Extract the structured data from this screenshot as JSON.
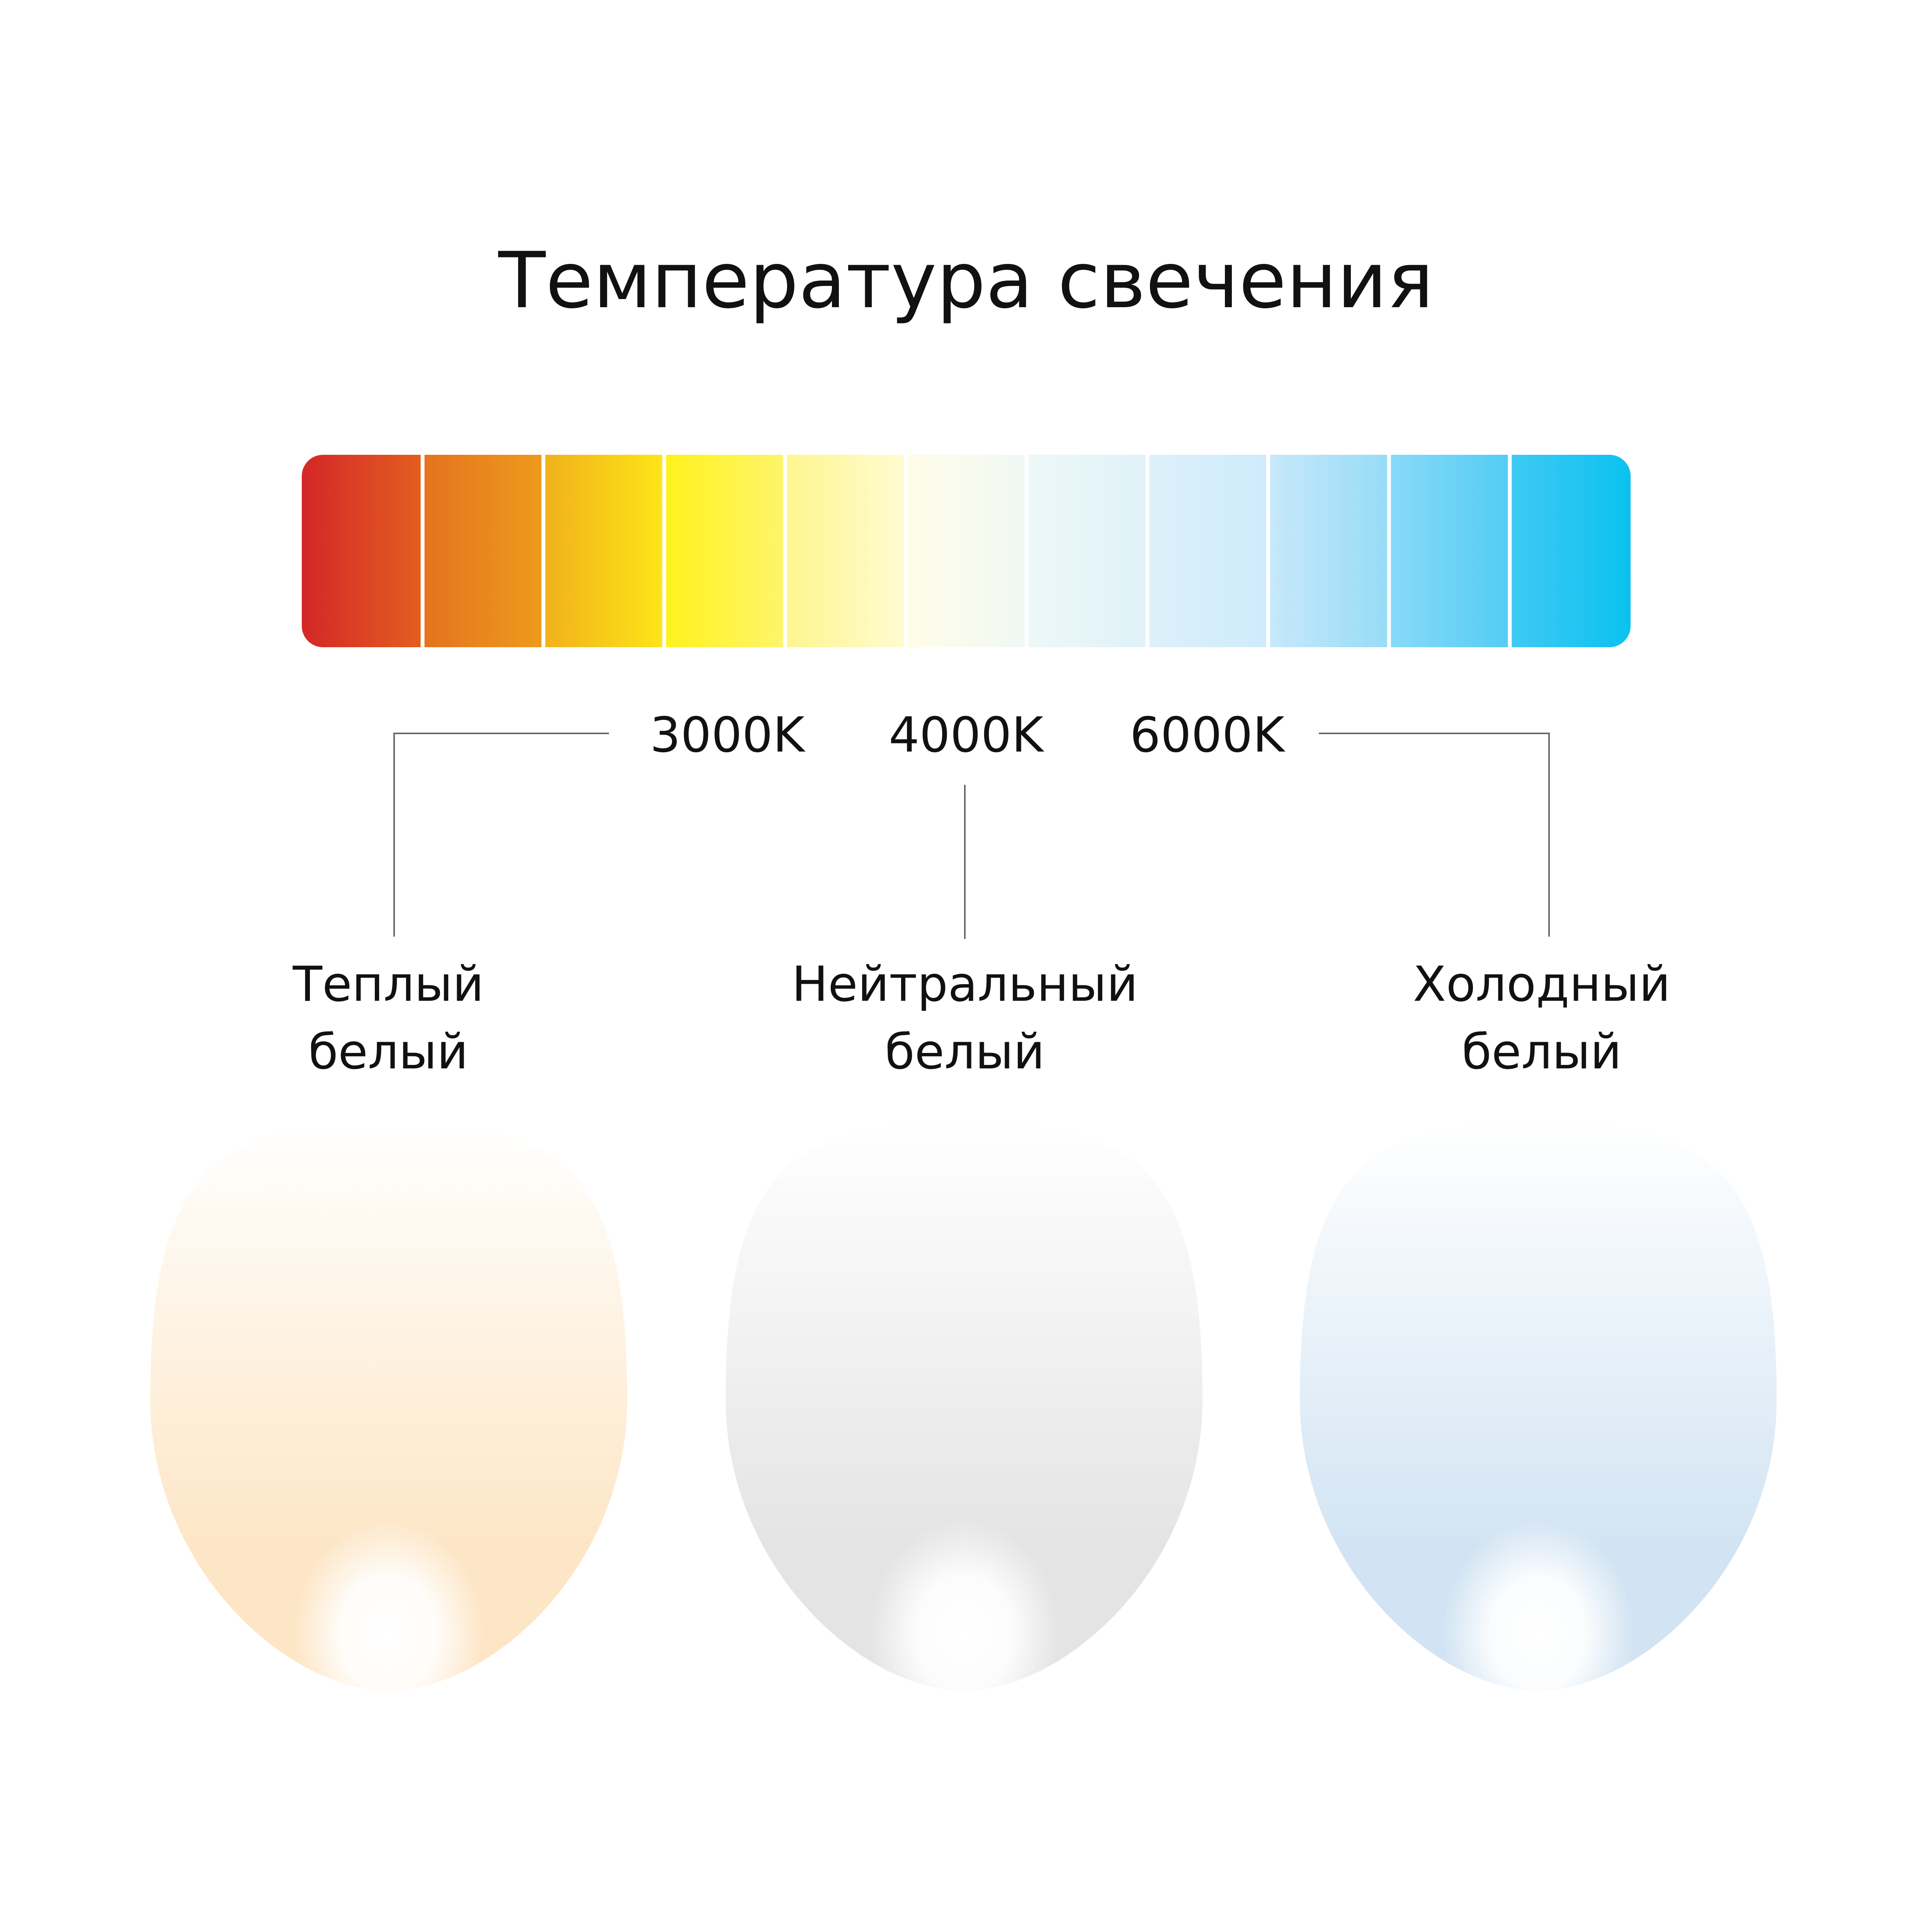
{
  "title": "Температура свечения",
  "scale": {
    "segments": [
      {
        "from": "#d42727",
        "to": "#e35e1f"
      },
      {
        "from": "#e5731e",
        "to": "#ed9b1c"
      },
      {
        "from": "#f1b11b",
        "to": "#fde518"
      },
      {
        "from": "#fff21c",
        "to": "#fef56b"
      },
      {
        "from": "#fef690",
        "to": "#fffbd0"
      },
      {
        "from": "#fffde8",
        "to": "#f0f8f4"
      },
      {
        "from": "#edf8f8",
        "to": "#dff2f8"
      },
      {
        "from": "#dcf0fa",
        "to": "#cfebfc"
      },
      {
        "from": "#c7e8fb",
        "to": "#97dcf7"
      },
      {
        "from": "#88d9f8",
        "to": "#54cdf4"
      },
      {
        "from": "#3fcaf3",
        "to": "#0bc1f0"
      }
    ],
    "ticks": [
      "3000K",
      "4000K",
      "6000K"
    ]
  },
  "categories": [
    {
      "line1": "Теплый",
      "line2": "белый",
      "tint": "#fde6c6"
    },
    {
      "line1": "Нейтральный",
      "line2": "белый",
      "tint": "#e4e4e4"
    },
    {
      "line1": "Холодный",
      "line2": "белый",
      "tint": "#d2e4f3"
    }
  ]
}
